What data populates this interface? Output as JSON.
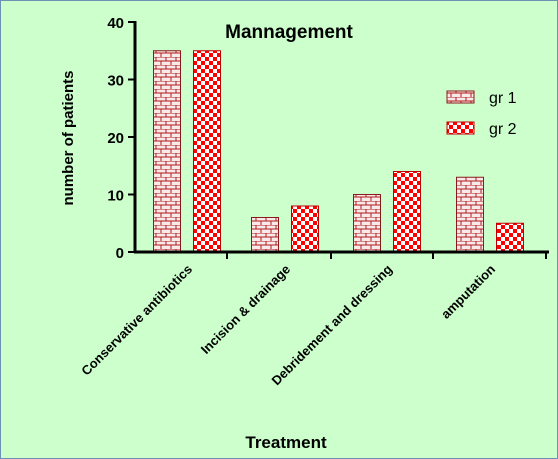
{
  "chart_data": {
    "type": "bar",
    "title": "Mannagement",
    "xlabel": "Treatment",
    "ylabel": "number of patients",
    "categories": [
      "Conservative antibiotics",
      "Incision & drainage",
      "Debridement and dressing",
      "amputation"
    ],
    "series": [
      {
        "name": "gr 1",
        "values": [
          35,
          6,
          10,
          13
        ]
      },
      {
        "name": "gr 2",
        "values": [
          35,
          8,
          14,
          5
        ]
      }
    ],
    "ylim": [
      0,
      40
    ],
    "yticks": [
      0,
      10,
      20,
      30,
      40
    ],
    "legend_position": "top-right",
    "grid": false,
    "background": "#ccffcc",
    "colors": {
      "gr1_fill": "#ffffff",
      "gr1_pattern": "#b01a1a",
      "gr2_fill": "#ffffff",
      "gr2_pattern": "#ff0000"
    }
  }
}
